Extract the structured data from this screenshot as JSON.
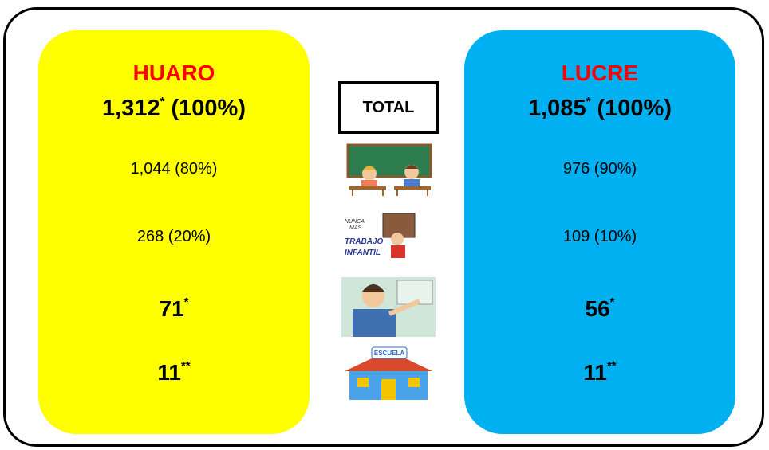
{
  "left": {
    "name": "HUARO",
    "total": "1,312",
    "total_note": "*",
    "total_share": "(100%)",
    "rows": [
      {
        "text": "1,044 (80%)"
      },
      {
        "text": "268 (20%)"
      },
      {
        "text": "71",
        "note": "*"
      },
      {
        "text": "11",
        "note": "**"
      }
    ]
  },
  "right": {
    "name": "LUCRE",
    "total": "1,085",
    "total_note": "*",
    "total_share": "(100%)",
    "rows": [
      {
        "text": "976 (90%)"
      },
      {
        "text": "109 (10%)"
      },
      {
        "text": "56",
        "note": "*"
      },
      {
        "text": "11",
        "note": "**"
      }
    ]
  },
  "center": {
    "label": "TOTAL",
    "labor_sign": [
      "NUNCA",
      "MÁS",
      "TRABAJO",
      "INFANTIL"
    ],
    "school_sign": "ESCUELA"
  }
}
